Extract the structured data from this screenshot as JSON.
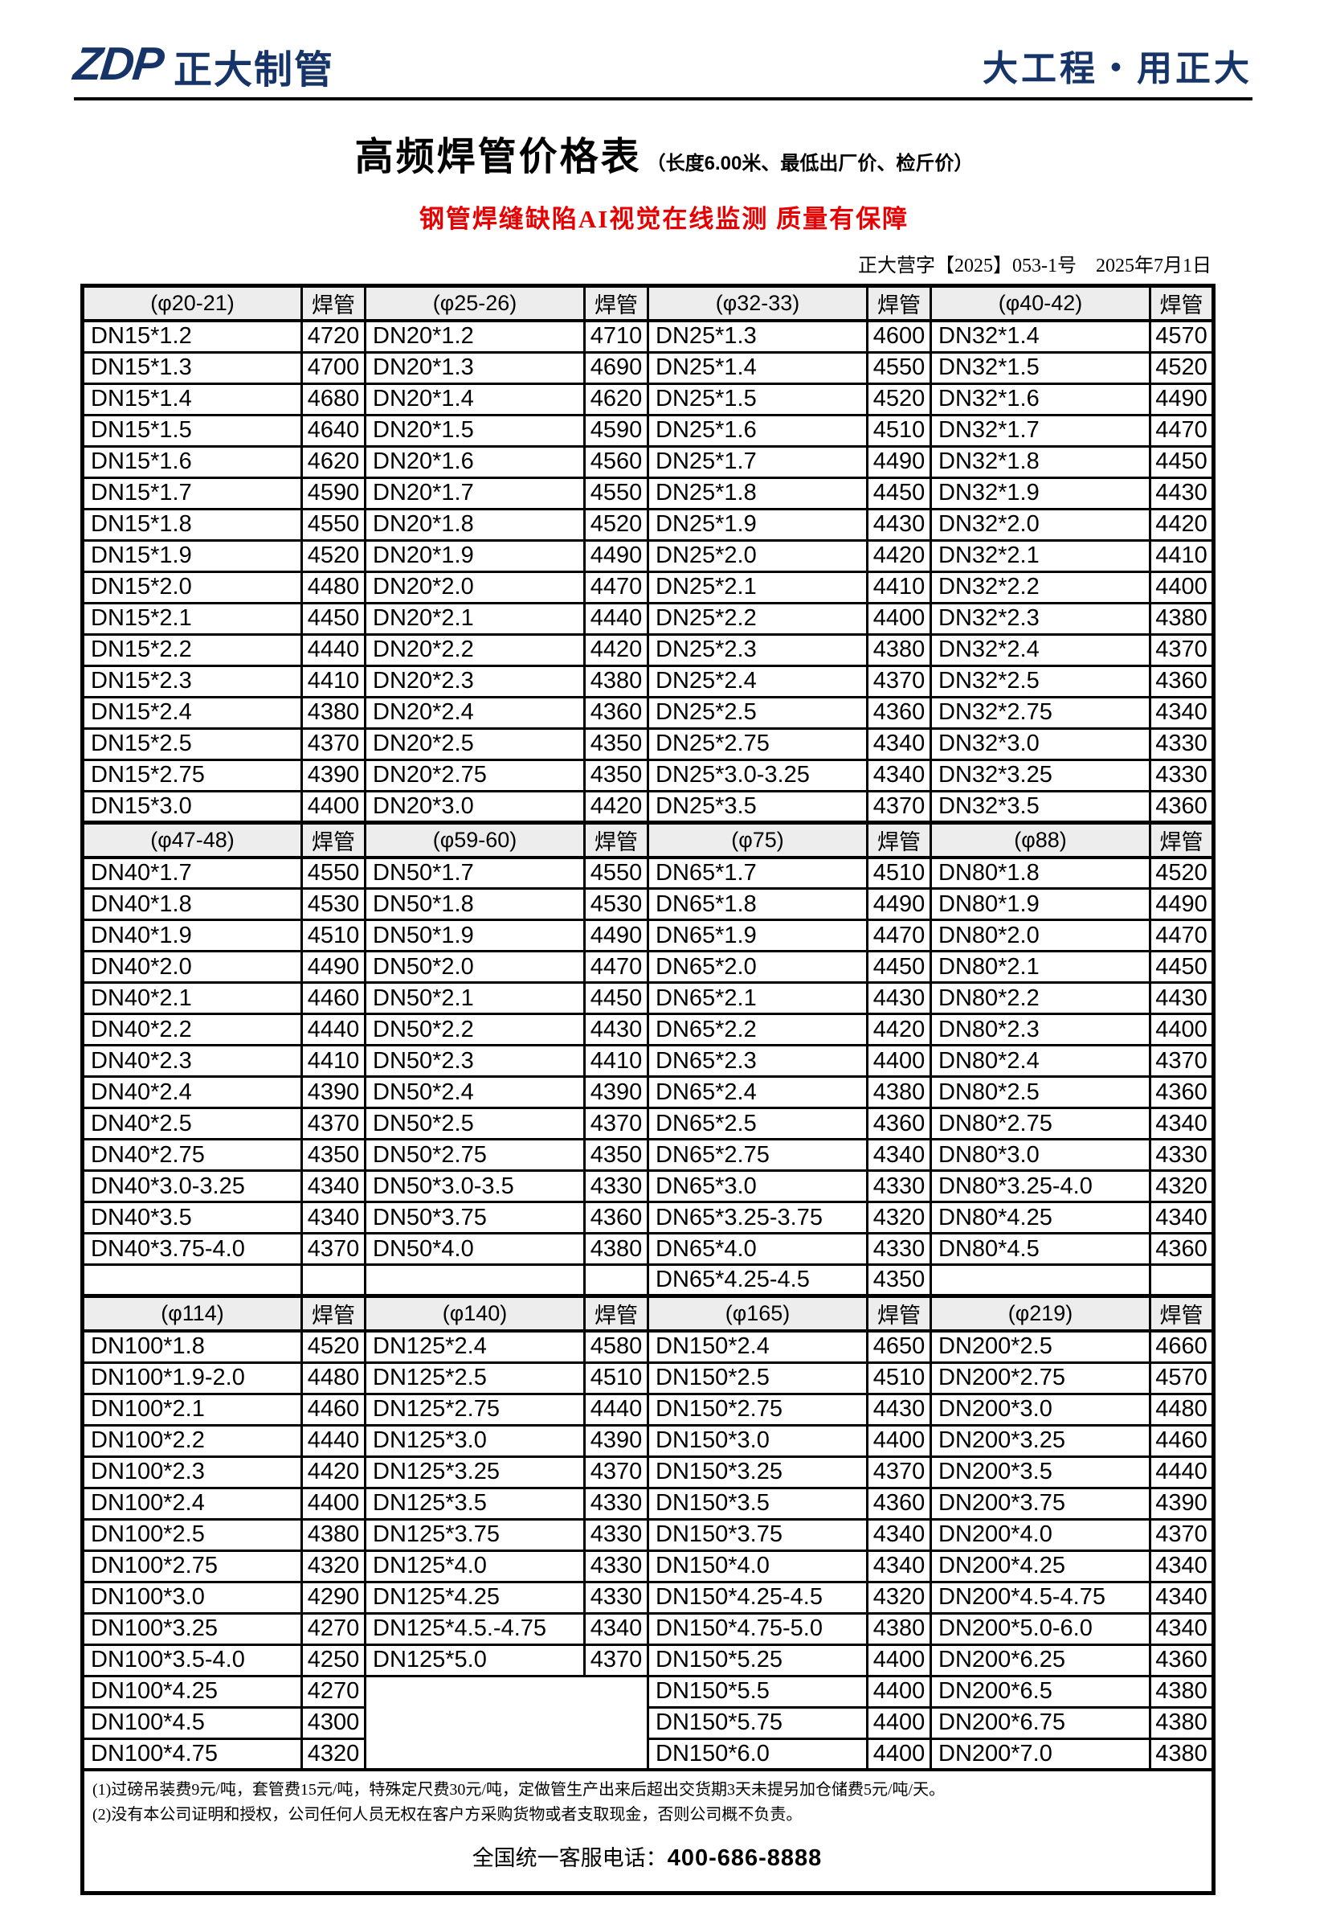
{
  "colors": {
    "brand_navy": "#163468",
    "banner_red": "#e60000",
    "header_gray": "#ededed"
  },
  "brand": {
    "logo_zdp": "ZDP",
    "logo_name": "正大制管",
    "slogan": "大工程・用正大"
  },
  "title": {
    "main": "高频焊管价格表",
    "sub": "（长度6.00米、最低出厂价、检斤价）",
    "banner": "钢管焊缝缺陷AI视觉在线监测 质量有保障",
    "doc_no": "正大营字【2025】053-1号　2025年7月1日"
  },
  "sections": [
    {
      "headers": [
        "(φ20-21)",
        "焊管",
        "(φ25-26)",
        "焊管",
        "(φ32-33)",
        "焊管",
        "(φ40-42)",
        "焊管"
      ],
      "rows": [
        [
          "DN15*1.2",
          "4720",
          "DN20*1.2",
          "4710",
          "DN25*1.3",
          "4600",
          "DN32*1.4",
          "4570"
        ],
        [
          "DN15*1.3",
          "4700",
          "DN20*1.3",
          "4690",
          "DN25*1.4",
          "4550",
          "DN32*1.5",
          "4520"
        ],
        [
          "DN15*1.4",
          "4680",
          "DN20*1.4",
          "4620",
          "DN25*1.5",
          "4520",
          "DN32*1.6",
          "4490"
        ],
        [
          "DN15*1.5",
          "4640",
          "DN20*1.5",
          "4590",
          "DN25*1.6",
          "4510",
          "DN32*1.7",
          "4470"
        ],
        [
          "DN15*1.6",
          "4620",
          "DN20*1.6",
          "4560",
          "DN25*1.7",
          "4490",
          "DN32*1.8",
          "4450"
        ],
        [
          "DN15*1.7",
          "4590",
          "DN20*1.7",
          "4550",
          "DN25*1.8",
          "4450",
          "DN32*1.9",
          "4430"
        ],
        [
          "DN15*1.8",
          "4550",
          "DN20*1.8",
          "4520",
          "DN25*1.9",
          "4430",
          "DN32*2.0",
          "4420"
        ],
        [
          "DN15*1.9",
          "4520",
          "DN20*1.9",
          "4490",
          "DN25*2.0",
          "4420",
          "DN32*2.1",
          "4410"
        ],
        [
          "DN15*2.0",
          "4480",
          "DN20*2.0",
          "4470",
          "DN25*2.1",
          "4410",
          "DN32*2.2",
          "4400"
        ],
        [
          "DN15*2.1",
          "4450",
          "DN20*2.1",
          "4440",
          "DN25*2.2",
          "4400",
          "DN32*2.3",
          "4380"
        ],
        [
          "DN15*2.2",
          "4440",
          "DN20*2.2",
          "4420",
          "DN25*2.3",
          "4380",
          "DN32*2.4",
          "4370"
        ],
        [
          "DN15*2.3",
          "4410",
          "DN20*2.3",
          "4380",
          "DN25*2.4",
          "4370",
          "DN32*2.5",
          "4360"
        ],
        [
          "DN15*2.4",
          "4380",
          "DN20*2.4",
          "4360",
          "DN25*2.5",
          "4360",
          "DN32*2.75",
          "4340"
        ],
        [
          "DN15*2.5",
          "4370",
          "DN20*2.5",
          "4350",
          "DN25*2.75",
          "4340",
          "DN32*3.0",
          "4330"
        ],
        [
          "DN15*2.75",
          "4390",
          "DN20*2.75",
          "4350",
          "DN25*3.0-3.25",
          "4340",
          "DN32*3.25",
          "4330"
        ],
        [
          "DN15*3.0",
          "4400",
          "DN20*3.0",
          "4420",
          "DN25*3.5",
          "4370",
          "DN32*3.5",
          "4360"
        ]
      ]
    },
    {
      "headers": [
        "(φ47-48)",
        "焊管",
        "(φ59-60)",
        "焊管",
        "(φ75)",
        "焊管",
        "(φ88)",
        "焊管"
      ],
      "rows": [
        [
          "DN40*1.7",
          "4550",
          "DN50*1.7",
          "4550",
          "DN65*1.7",
          "4510",
          "DN80*1.8",
          "4520"
        ],
        [
          "DN40*1.8",
          "4530",
          "DN50*1.8",
          "4530",
          "DN65*1.8",
          "4490",
          "DN80*1.9",
          "4490"
        ],
        [
          "DN40*1.9",
          "4510",
          "DN50*1.9",
          "4490",
          "DN65*1.9",
          "4470",
          "DN80*2.0",
          "4470"
        ],
        [
          "DN40*2.0",
          "4490",
          "DN50*2.0",
          "4470",
          "DN65*2.0",
          "4450",
          "DN80*2.1",
          "4450"
        ],
        [
          "DN40*2.1",
          "4460",
          "DN50*2.1",
          "4450",
          "DN65*2.1",
          "4430",
          "DN80*2.2",
          "4430"
        ],
        [
          "DN40*2.2",
          "4440",
          "DN50*2.2",
          "4430",
          "DN65*2.2",
          "4420",
          "DN80*2.3",
          "4400"
        ],
        [
          "DN40*2.3",
          "4410",
          "DN50*2.3",
          "4410",
          "DN65*2.3",
          "4400",
          "DN80*2.4",
          "4370"
        ],
        [
          "DN40*2.4",
          "4390",
          "DN50*2.4",
          "4390",
          "DN65*2.4",
          "4380",
          "DN80*2.5",
          "4360"
        ],
        [
          "DN40*2.5",
          "4370",
          "DN50*2.5",
          "4370",
          "DN65*2.5",
          "4360",
          "DN80*2.75",
          "4340"
        ],
        [
          "DN40*2.75",
          "4350",
          "DN50*2.75",
          "4350",
          "DN65*2.75",
          "4340",
          "DN80*3.0",
          "4330"
        ],
        [
          "DN40*3.0-3.25",
          "4340",
          "DN50*3.0-3.5",
          "4330",
          "DN65*3.0",
          "4330",
          "DN80*3.25-4.0",
          "4320"
        ],
        [
          "DN40*3.5",
          "4340",
          "DN50*3.75",
          "4360",
          "DN65*3.25-3.75",
          "4320",
          "DN80*4.25",
          "4340"
        ],
        [
          "DN40*3.75-4.0",
          "4370",
          "DN50*4.0",
          "4380",
          "DN65*4.0",
          "4330",
          "DN80*4.5",
          "4360"
        ],
        [
          "",
          "",
          "",
          "",
          "DN65*4.25-4.5",
          "4350",
          "",
          ""
        ]
      ]
    },
    {
      "headers": [
        "(φ114)",
        "焊管",
        "(φ140)",
        "焊管",
        "(φ165)",
        "焊管",
        "(φ219)",
        "焊管"
      ],
      "merge": {
        "row": 11,
        "col": 2,
        "rowspan": 3,
        "colspan": 2
      },
      "rows": [
        [
          "DN100*1.8",
          "4520",
          "DN125*2.4",
          "4580",
          "DN150*2.4",
          "4650",
          "DN200*2.5",
          "4660"
        ],
        [
          "DN100*1.9-2.0",
          "4480",
          "DN125*2.5",
          "4510",
          "DN150*2.5",
          "4510",
          "DN200*2.75",
          "4570"
        ],
        [
          "DN100*2.1",
          "4460",
          "DN125*2.75",
          "4440",
          "DN150*2.75",
          "4430",
          "DN200*3.0",
          "4480"
        ],
        [
          "DN100*2.2",
          "4440",
          "DN125*3.0",
          "4390",
          "DN150*3.0",
          "4400",
          "DN200*3.25",
          "4460"
        ],
        [
          "DN100*2.3",
          "4420",
          "DN125*3.25",
          "4370",
          "DN150*3.25",
          "4370",
          "DN200*3.5",
          "4440"
        ],
        [
          "DN100*2.4",
          "4400",
          "DN125*3.5",
          "4330",
          "DN150*3.5",
          "4360",
          "DN200*3.75",
          "4390"
        ],
        [
          "DN100*2.5",
          "4380",
          "DN125*3.75",
          "4330",
          "DN150*3.75",
          "4340",
          "DN200*4.0",
          "4370"
        ],
        [
          "DN100*2.75",
          "4320",
          "DN125*4.0",
          "4330",
          "DN150*4.0",
          "4340",
          "DN200*4.25",
          "4340"
        ],
        [
          "DN100*3.0",
          "4290",
          "DN125*4.25",
          "4330",
          "DN150*4.25-4.5",
          "4320",
          "DN200*4.5-4.75",
          "4340"
        ],
        [
          "DN100*3.25",
          "4270",
          "DN125*4.5.-4.75",
          "4340",
          "DN150*4.75-5.0",
          "4380",
          "DN200*5.0-6.0",
          "4340"
        ],
        [
          "DN100*3.5-4.0",
          "4250",
          "DN125*5.0",
          "4370",
          "DN150*5.25",
          "4400",
          "DN200*6.25",
          "4360"
        ],
        [
          "DN100*4.25",
          "4270",
          null,
          null,
          "DN150*5.5",
          "4400",
          "DN200*6.5",
          "4380"
        ],
        [
          "DN100*4.5",
          "4300",
          null,
          null,
          "DN150*5.75",
          "4400",
          "DN200*6.75",
          "4380"
        ],
        [
          "DN100*4.75",
          "4320",
          null,
          null,
          "DN150*6.0",
          "4400",
          "DN200*7.0",
          "4380"
        ]
      ]
    }
  ],
  "notes": [
    "(1)过磅吊装费9元/吨，套管费15元/吨，特殊定尺费30元/吨，定做管生产出来后超出交货期3天未提另加仓储费5元/吨/天。",
    "(2)没有本公司证明和授权，公司任何人员无权在客户方采购货物或者支取现金，否则公司概不负责。"
  ],
  "hotline_label": "全国统一客服电话：",
  "hotline_number": "400-686-8888"
}
